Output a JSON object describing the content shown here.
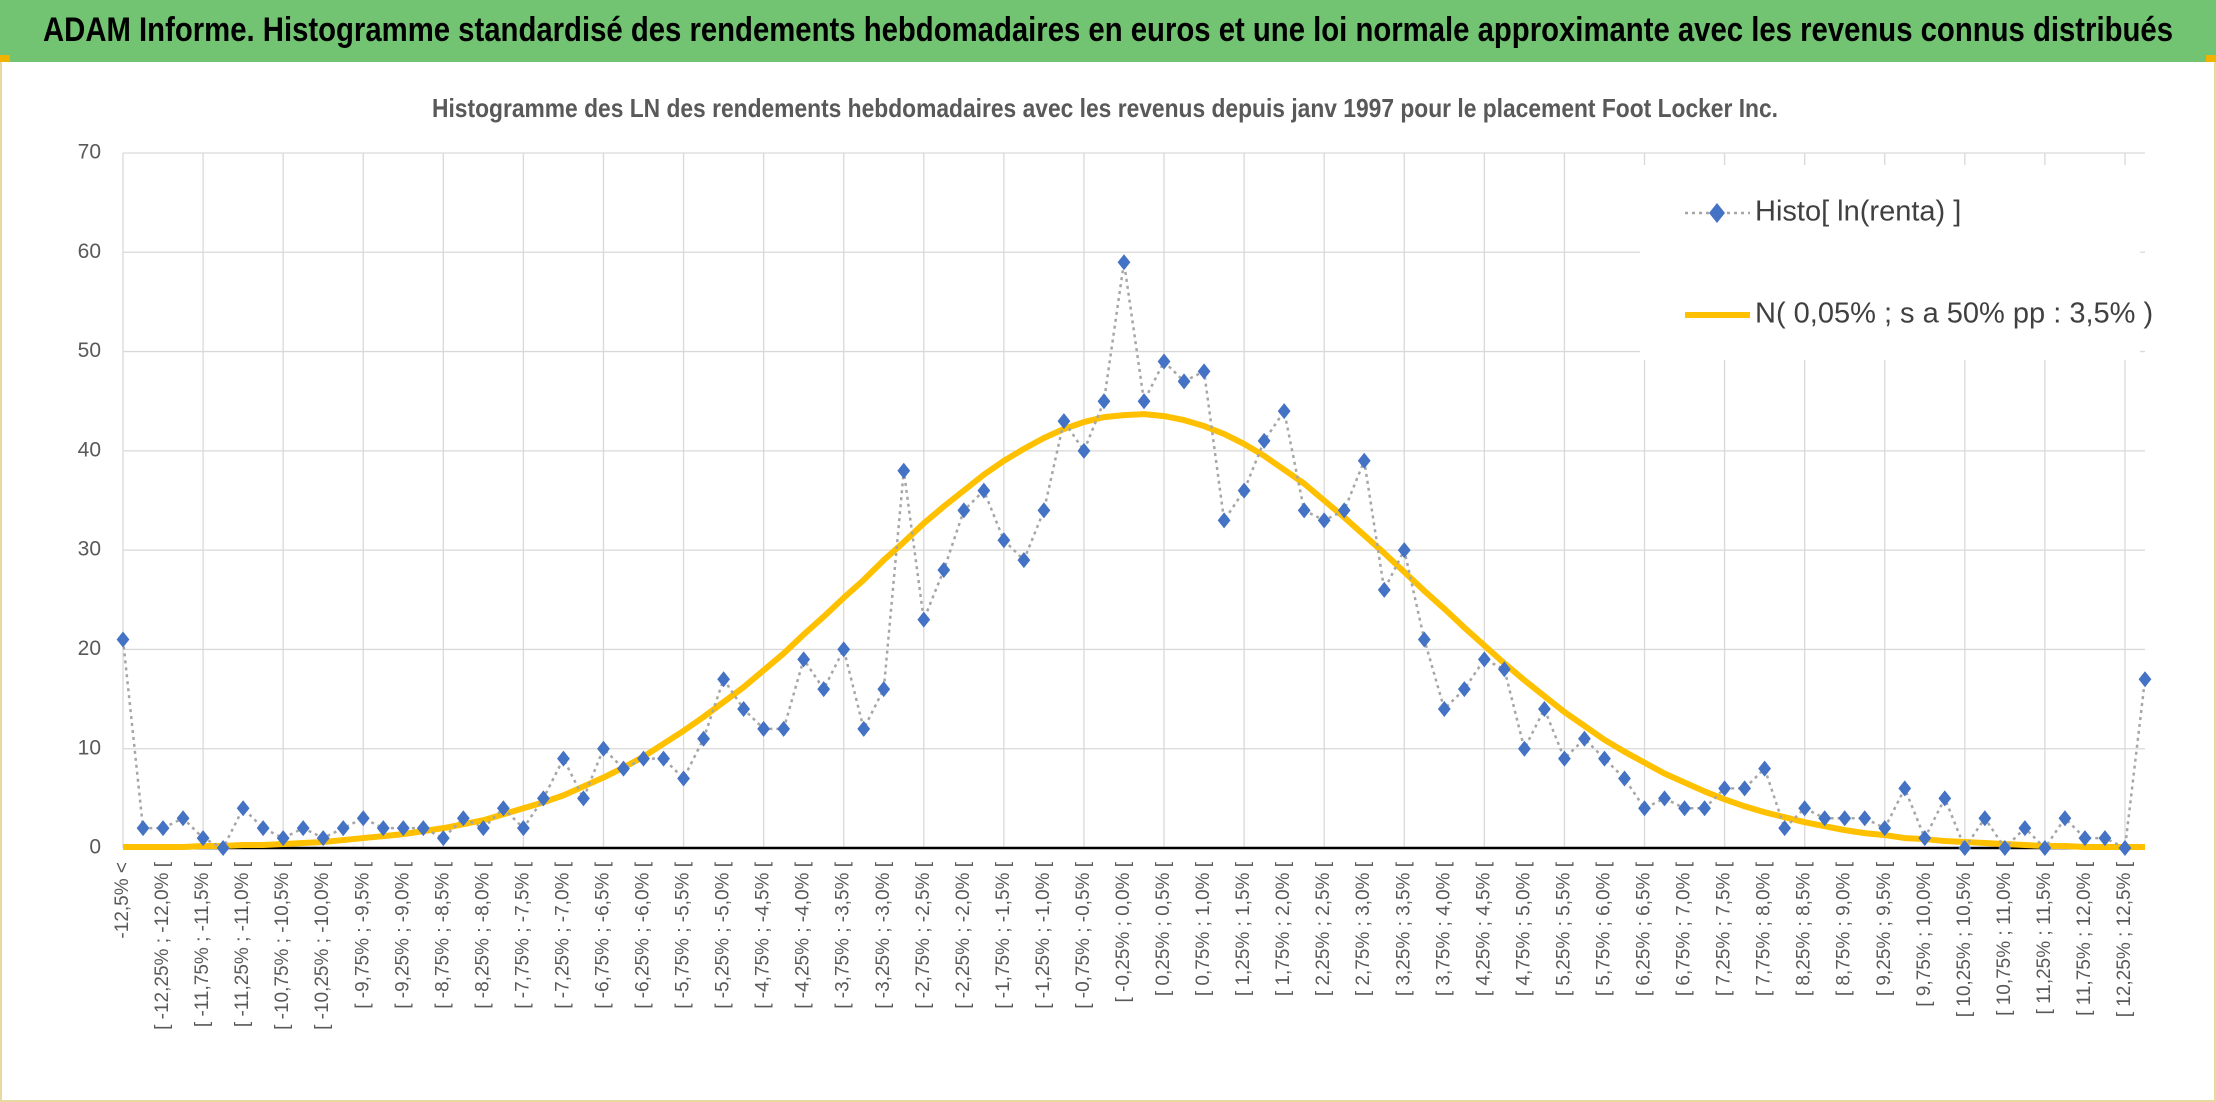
{
  "title": "ADAM Informe. Histogramme standardisé des rendements hebdomadaires en euros et une loi normale approximante avec les revenus connus distribués",
  "chart_data": {
    "type": "line",
    "title": "Histogramme des LN des rendements hebdomadaires avec les revenus depuis janv 1997 pour le placement Foot Locker Inc.",
    "categories": [
      "-12,5% <",
      null,
      "[ -12,25% ; -12,0% [",
      null,
      "[ -11,75% ; -11,5% [",
      null,
      "[ -11,25% ; -11,0% [",
      null,
      "[ -10,75% ; -10,5% [",
      null,
      "[ -10,25% ; -10,0% [",
      null,
      "[ -9,75% ; -9,5% [",
      null,
      "[ -9,25% ; -9,0% [",
      null,
      "[ -8,75% ; -8,5% [",
      null,
      "[ -8,25% ; -8,0% [",
      null,
      "[ -7,75% ; -7,5% [",
      null,
      "[ -7,25% ; -7,0% [",
      null,
      "[ -6,75% ; -6,5% [",
      null,
      "[ -6,25% ; -6,0% [",
      null,
      "[ -5,75% ; -5,5% [",
      null,
      "[ -5,25% ; -5,0% [",
      null,
      "[ -4,75% ; -4,5% [",
      null,
      "[ -4,25% ; -4,0% [",
      null,
      "[ -3,75% ; -3,5% [",
      null,
      "[ -3,25% ; -3,0% [",
      null,
      "[ -2,75% ; -2,5% [",
      null,
      "[ -2,25% ; -2,0% [",
      null,
      "[ -1,75% ; -1,5% [",
      null,
      "[ -1,25% ; -1,0% [",
      null,
      "[ -0,75% ; -0,5% [",
      null,
      "[ -0,25% ; 0,0% [",
      null,
      "[ 0,25% ; 0,5% [",
      null,
      "[ 0,75% ; 1,0% [",
      null,
      "[ 1,25% ; 1,5% [",
      null,
      "[ 1,75% ; 2,0% [",
      null,
      "[ 2,25% ; 2,5% [",
      null,
      "[ 2,75% ; 3,0% [",
      null,
      "[ 3,25% ; 3,5% [",
      null,
      "[ 3,75% ; 4,0% [",
      null,
      "[ 4,25% ; 4,5% [",
      null,
      "[ 4,75% ; 5,0% [",
      null,
      "[ 5,25% ; 5,5% [",
      null,
      "[ 5,75% ; 6,0% [",
      null,
      "[ 6,25% ; 6,5% [",
      null,
      "[ 6,75% ; 7,0% [",
      null,
      "[ 7,25% ; 7,5% [",
      null,
      "[ 7,75% ; 8,0% [",
      null,
      "[ 8,25% ; 8,5% [",
      null,
      "[ 8,75% ; 9,0% [",
      null,
      "[ 9,25% ; 9,5% [",
      null,
      "[ 9,75% ; 10,0% [",
      null,
      "[ 10,25% ; 10,5% [",
      null,
      "[ 10,75% ; 11,0% [",
      null,
      "[ 11,25% ; 11,5% [",
      null,
      "[ 11,75% ; 12,0% [",
      null,
      "[ 12,25% ; 12,5% [",
      null
    ],
    "series": [
      {
        "name": "Histo[ ln(renta) ]",
        "color": "#4472c4",
        "marker": "diamond",
        "line_style": "dotted",
        "values": [
          21,
          2,
          2,
          3,
          1,
          0,
          4,
          2,
          1,
          2,
          1,
          2,
          3,
          2,
          2,
          2,
          1,
          3,
          2,
          4,
          2,
          5,
          9,
          5,
          10,
          8,
          9,
          9,
          7,
          11,
          17,
          14,
          12,
          12,
          19,
          16,
          20,
          12,
          16,
          38,
          23,
          28,
          34,
          36,
          31,
          29,
          34,
          43,
          40,
          45,
          59,
          45,
          49,
          47,
          48,
          33,
          36,
          41,
          44,
          34,
          33,
          34,
          39,
          26,
          30,
          21,
          14,
          16,
          19,
          18,
          10,
          14,
          9,
          11,
          9,
          7,
          4,
          5,
          4,
          4,
          6,
          6,
          8,
          2,
          4,
          3,
          3,
          3,
          2,
          6,
          1,
          5,
          0,
          3,
          0,
          2,
          0,
          3,
          1,
          1,
          0,
          17
        ]
      },
      {
        "name": "N( 0,05% ; s a 50% pp : 3,5% )",
        "color": "#ffc000",
        "marker": "none",
        "line_style": "solid",
        "values": [
          0.1,
          0.1,
          0.1,
          0.1,
          0.2,
          0.2,
          0.3,
          0.3,
          0.4,
          0.5,
          0.6,
          0.8,
          1.0,
          1.2,
          1.4,
          1.7,
          2.0,
          2.4,
          2.8,
          3.4,
          4.0,
          4.6,
          5.3,
          6.2,
          7.1,
          8.1,
          9.2,
          10.5,
          11.8,
          13.2,
          14.7,
          16.2,
          17.9,
          19.6,
          21.5,
          23.3,
          25.2,
          27.0,
          29.0,
          30.8,
          32.7,
          34.4,
          36.0,
          37.6,
          39.0,
          40.2,
          41.3,
          42.2,
          42.9,
          43.4,
          43.6,
          43.7,
          43.5,
          43.1,
          42.5,
          41.7,
          40.7,
          39.5,
          38.1,
          36.7,
          35.0,
          33.3,
          31.5,
          29.7,
          27.8,
          25.9,
          24.1,
          22.2,
          20.4,
          18.6,
          16.9,
          15.3,
          13.7,
          12.3,
          10.9,
          9.7,
          8.6,
          7.5,
          6.6,
          5.7,
          4.9,
          4.2,
          3.6,
          3.1,
          2.6,
          2.2,
          1.8,
          1.5,
          1.3,
          1.0,
          0.9,
          0.7,
          0.6,
          0.5,
          0.4,
          0.3,
          0.2,
          0.2,
          0.1,
          0.1,
          0.1,
          0.1
        ]
      }
    ],
    "ylim": [
      0,
      70
    ],
    "yticks": [
      0,
      10,
      20,
      30,
      40,
      50,
      60,
      70
    ],
    "grid": true,
    "legend": "top-right"
  }
}
